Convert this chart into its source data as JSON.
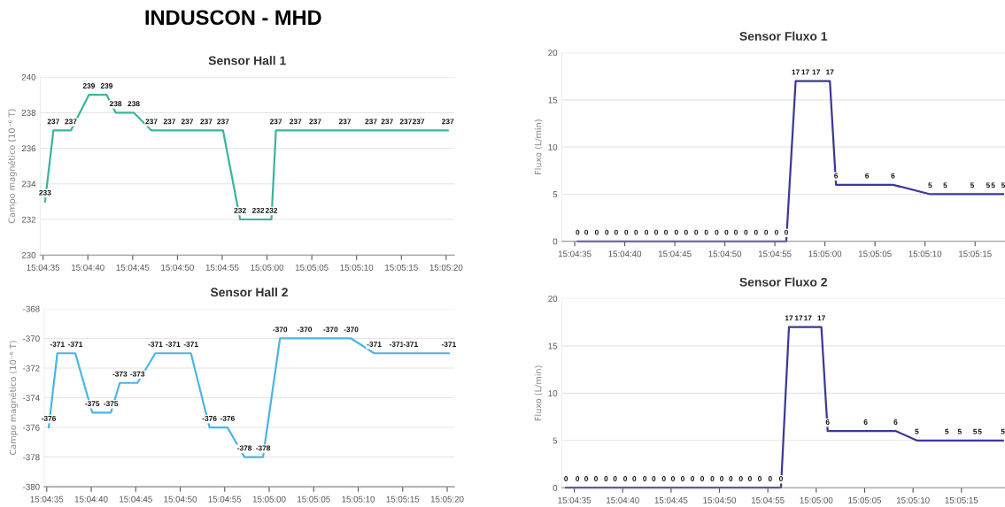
{
  "chart_data": [
    {
      "type": "line",
      "title": "Sensor Hall 1",
      "ylabel": "Campo magnético (10⁻⁶ T)",
      "annotations": [
        "INDUSCON - MHD"
      ],
      "x": [
        15.07645,
        15.07671,
        15.07725,
        15.07781,
        15.07836,
        15.07864,
        15.0792,
        15.07975,
        15.08031,
        15.08086,
        15.08145,
        15.08197,
        15.0825,
        15.08306,
        15.08347,
        15.08361,
        15.08422,
        15.08483,
        15.08575,
        15.08656,
        15.08706,
        15.08764,
        15.08803,
        15.08894
      ],
      "series": [
        {
          "color": "#3db39b",
          "values": [
            233,
            237,
            237,
            239,
            239,
            238,
            238,
            237,
            237,
            237,
            237,
            237,
            232,
            232,
            232,
            237,
            237,
            237,
            237,
            237,
            237,
            237,
            237,
            237
          ]
        }
      ],
      "xlim": [
        15.0763,
        15.08914
      ],
      "ylim": [
        230,
        240
      ],
      "yticks": [
        230,
        232,
        234,
        236,
        238,
        240
      ],
      "xticks": [
        {
          "value": 15.076389,
          "label": "15:04:35"
        },
        {
          "value": 15.077778,
          "label": "15:04:40"
        },
        {
          "value": 15.079167,
          "label": "15:04:45"
        },
        {
          "value": 15.080556,
          "label": "15:04:50"
        },
        {
          "value": 15.081944,
          "label": "15:04:55"
        },
        {
          "value": 15.083333,
          "label": "15:05:00"
        },
        {
          "value": 15.084722,
          "label": "15:05:05"
        },
        {
          "value": 15.086111,
          "label": "15:05:10"
        },
        {
          "value": 15.0875,
          "label": "15:05:15"
        },
        {
          "value": 15.088889,
          "label": "15:05:20"
        }
      ],
      "grid": "y",
      "data_labels": true,
      "marker": "none",
      "line_style": "solid"
    },
    {
      "type": "line",
      "title": "Sensor Hall 2",
      "ylabel": "Campo magnético (10⁻⁶ T)",
      "x": [
        15.07645,
        15.07672,
        15.07728,
        15.07781,
        15.07839,
        15.07867,
        15.07922,
        15.07978,
        15.08033,
        15.08089,
        15.08147,
        15.08203,
        15.08256,
        15.08314,
        15.08367,
        15.08444,
        15.08525,
        15.08589,
        15.08661,
        15.08731,
        15.08775,
        15.08894
      ],
      "series": [
        {
          "color": "#4cb4e6",
          "values": [
            -376,
            -371,
            -371,
            -375,
            -375,
            -373,
            -373,
            -371,
            -371,
            -371,
            -376,
            -376,
            -378,
            -378,
            -370,
            -370,
            -370,
            -370,
            -371,
            -371,
            -371,
            -371
          ]
        }
      ],
      "xlim": [
        15.07631,
        15.08911
      ],
      "ylim": [
        -380,
        -368
      ],
      "yticks": [
        -380,
        -378,
        -376,
        -374,
        -372,
        -370,
        -368
      ],
      "xticks": [
        {
          "value": 15.076389,
          "label": "15:04:35"
        },
        {
          "value": 15.077778,
          "label": "15:04:40"
        },
        {
          "value": 15.079167,
          "label": "15:04:45"
        },
        {
          "value": 15.080556,
          "label": "15:04:50"
        },
        {
          "value": 15.081944,
          "label": "15:04:55"
        },
        {
          "value": 15.083333,
          "label": "15:05:00"
        },
        {
          "value": 15.084722,
          "label": "15:05:05"
        },
        {
          "value": 15.086111,
          "label": "15:05:10"
        },
        {
          "value": 15.0875,
          "label": "15:05:15"
        },
        {
          "value": 15.088889,
          "label": "15:05:20"
        }
      ],
      "grid": "y",
      "data_labels": true,
      "marker": "none",
      "line_style": "solid"
    },
    {
      "type": "line",
      "title": "Sensor Fluxo 1",
      "ylabel": "Fluxo (L/min)",
      "x": [
        15.07647,
        15.07671,
        15.077,
        15.07728,
        15.07754,
        15.07782,
        15.07809,
        15.07838,
        15.07865,
        15.07892,
        15.07921,
        15.07948,
        15.07976,
        15.08004,
        15.08033,
        15.0806,
        15.08086,
        15.08114,
        15.08142,
        15.0817,
        15.08199,
        15.08226,
        15.08252,
        15.08279,
        15.08309,
        15.08347,
        15.08364,
        15.0845,
        15.08522,
        15.08625,
        15.08667,
        15.08742,
        15.08786,
        15.088,
        15.08828
      ],
      "series": [
        {
          "color": "#3b3896",
          "values": [
            0,
            0,
            0,
            0,
            0,
            0,
            0,
            0,
            0,
            0,
            0,
            0,
            0,
            0,
            0,
            0,
            0,
            0,
            0,
            0,
            0,
            0,
            17,
            17,
            17,
            17,
            6,
            6,
            6,
            5,
            5,
            5,
            5,
            5,
            5
          ]
        }
      ],
      "xlim": [
        15.07603,
        15.08833
      ],
      "ylim": [
        0,
        20
      ],
      "yticks": [
        0,
        5,
        10,
        15,
        20
      ],
      "xticks": [
        {
          "value": 15.076389,
          "label": "15:04:35"
        },
        {
          "value": 15.077778,
          "label": "15:04:40"
        },
        {
          "value": 15.079167,
          "label": "15:04:45"
        },
        {
          "value": 15.080556,
          "label": "15:04:50"
        },
        {
          "value": 15.081944,
          "label": "15:04:55"
        },
        {
          "value": 15.083333,
          "label": "15:05:00"
        },
        {
          "value": 15.084722,
          "label": "15:05:05"
        },
        {
          "value": 15.086111,
          "label": "15:05:10"
        },
        {
          "value": 15.0875,
          "label": "15:05:15"
        }
      ],
      "grid": "y",
      "data_labels": true,
      "marker": "none",
      "line_style": "solid"
    },
    {
      "type": "line",
      "title": "Sensor Fluxo 2",
      "ylabel": "Fluxo (L/min)",
      "x": [
        15.07615,
        15.07648,
        15.07673,
        15.07701,
        15.0773,
        15.07756,
        15.07785,
        15.07811,
        15.07841,
        15.07867,
        15.07896,
        15.07922,
        15.0795,
        15.07978,
        15.08006,
        15.08035,
        15.08062,
        15.08088,
        15.08117,
        15.08143,
        15.08171,
        15.08201,
        15.08232,
        15.08255,
        15.08283,
        15.08309,
        15.08348,
        15.08366,
        15.08475,
        15.08561,
        15.08622,
        15.08708,
        15.08745,
        15.08789,
        15.08803,
        15.08869
      ],
      "series": [
        {
          "color": "#3b3896",
          "values": [
            0,
            0,
            0,
            0,
            0,
            0,
            0,
            0,
            0,
            0,
            0,
            0,
            0,
            0,
            0,
            0,
            0,
            0,
            0,
            0,
            0,
            0,
            0,
            17,
            17,
            17,
            17,
            6,
            6,
            6,
            5,
            5,
            5,
            5,
            5,
            5
          ]
        }
      ],
      "xlim": [
        15.07603,
        15.08875
      ],
      "ylim": [
        0,
        20
      ],
      "yticks": [
        0,
        5,
        10,
        15,
        20
      ],
      "xticks": [
        {
          "value": 15.076389,
          "label": "15:04:35"
        },
        {
          "value": 15.077778,
          "label": "15:04:40"
        },
        {
          "value": 15.079167,
          "label": "15:04:45"
        },
        {
          "value": 15.080556,
          "label": "15:04:50"
        },
        {
          "value": 15.081944,
          "label": "15:04:55"
        },
        {
          "value": 15.083333,
          "label": "15:05:00"
        },
        {
          "value": 15.084722,
          "label": "15:05:05"
        },
        {
          "value": 15.086111,
          "label": "15:05:10"
        },
        {
          "value": 15.0875,
          "label": "15:05:15"
        }
      ],
      "grid": "y",
      "data_labels": true,
      "marker": "none",
      "line_style": "solid"
    }
  ]
}
